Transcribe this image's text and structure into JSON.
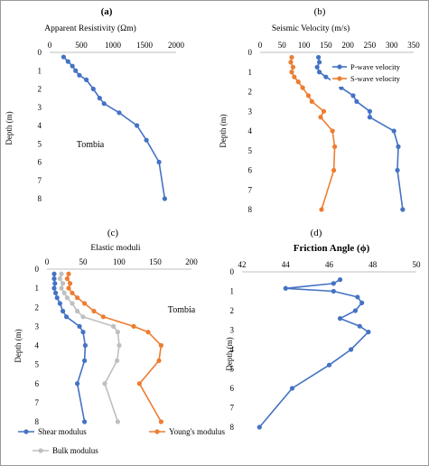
{
  "chart_data": [
    {
      "panel": "(a)",
      "type": "line",
      "title": "Apparent Resistivity (Ωm)",
      "ylabel": "Depth (m)",
      "xlim": [
        0,
        2000
      ],
      "ylim": [
        0,
        8
      ],
      "x_ticks": [
        0,
        500,
        1000,
        1500,
        2000
      ],
      "y_ticks": [
        0,
        1,
        2,
        3,
        4,
        5,
        6,
        7,
        8
      ],
      "annotation": "Tombia",
      "series": [
        {
          "color": "#4472c4",
          "x": [
            220,
            290,
            360,
            410,
            470,
            580,
            690,
            790,
            860,
            1100,
            1380,
            1530,
            1730,
            1820
          ],
          "y": [
            0.25,
            0.5,
            0.75,
            1.0,
            1.25,
            1.5,
            2.0,
            2.5,
            2.8,
            3.3,
            4.0,
            4.8,
            6.0,
            8.0
          ]
        }
      ]
    },
    {
      "panel": "(b)",
      "type": "line",
      "title": "Seismic Velocity (m/s)",
      "ylabel": "Depth (m)",
      "xlim": [
        0,
        350
      ],
      "ylim": [
        0,
        8
      ],
      "x_ticks": [
        0,
        50,
        100,
        150,
        200,
        250,
        300,
        350
      ],
      "y_ticks": [
        0,
        1,
        2,
        3,
        4,
        5,
        6,
        7,
        8
      ],
      "legend_position": "top-right",
      "series": [
        {
          "name": "P-wave velocity",
          "color": "#4472c4",
          "x": [
            133,
            135,
            130,
            135,
            150,
            168,
            185,
            212,
            220,
            250,
            250,
            305,
            315,
            313,
            325
          ],
          "y": [
            0.25,
            0.5,
            0.75,
            1.0,
            1.25,
            1.5,
            1.8,
            2.2,
            2.5,
            3.0,
            3.3,
            4.0,
            4.8,
            6.0,
            8.0
          ]
        },
        {
          "name": "S-wave velocity",
          "color": "#ed7d31",
          "x": [
            72,
            70,
            75,
            72,
            78,
            87,
            97,
            110,
            118,
            145,
            138,
            165,
            170,
            168,
            140
          ],
          "y": [
            0.25,
            0.5,
            0.75,
            1.0,
            1.25,
            1.5,
            1.8,
            2.2,
            2.5,
            3.0,
            3.3,
            4.0,
            4.8,
            6.0,
            8.0
          ]
        }
      ]
    },
    {
      "panel": "(c)",
      "type": "line",
      "title": "Elastic moduli",
      "ylabel": "Depth (m)",
      "xlim": [
        0,
        200
      ],
      "ylim": [
        0,
        8
      ],
      "x_ticks": [
        0,
        50,
        100,
        150,
        200
      ],
      "y_ticks": [
        0,
        1,
        2,
        3,
        4,
        5,
        6,
        7,
        8
      ],
      "annotation": "Tombia",
      "legend_position": "bottom",
      "series": [
        {
          "name": "Shear modulus",
          "color": "#4472c4",
          "x": [
            10,
            10,
            11,
            10,
            12,
            14,
            18,
            22,
            27,
            45,
            50,
            53,
            52,
            42,
            52
          ],
          "y": [
            0.25,
            0.5,
            0.75,
            1.0,
            1.25,
            1.5,
            1.8,
            2.2,
            2.5,
            3.0,
            3.3,
            4.0,
            4.8,
            6.0,
            8.0
          ]
        },
        {
          "name": "Young's modulus",
          "color": "#ed7d31",
          "x": [
            30,
            28,
            32,
            30,
            35,
            42,
            52,
            65,
            78,
            120,
            140,
            158,
            155,
            128,
            158
          ],
          "y": [
            0.25,
            0.5,
            0.75,
            1.0,
            1.25,
            1.5,
            1.8,
            2.2,
            2.5,
            3.0,
            3.3,
            4.0,
            4.8,
            6.0,
            8.0
          ]
        },
        {
          "name": "Bulk modulus",
          "color": "#bfbfbf",
          "x": [
            20,
            18,
            22,
            20,
            24,
            28,
            35,
            42,
            50,
            92,
            98,
            100,
            97,
            80,
            98
          ],
          "y": [
            0.25,
            0.5,
            0.75,
            1.0,
            1.25,
            1.5,
            1.8,
            2.2,
            2.5,
            3.0,
            3.3,
            4.0,
            4.8,
            6.0,
            8.0
          ]
        }
      ]
    },
    {
      "panel": "(d)",
      "type": "line",
      "title": "Friction Angle (ϕ)",
      "ylabel": "Depth (m)",
      "xlim": [
        42,
        50
      ],
      "ylim": [
        0,
        8
      ],
      "x_ticks": [
        42,
        44,
        46,
        48,
        50
      ],
      "y_ticks": [
        0,
        1,
        2,
        3,
        4,
        5,
        6,
        7,
        8
      ],
      "series": [
        {
          "color": "#4472c4",
          "x": [
            46.5,
            46.2,
            44.0,
            46.2,
            47.3,
            47.5,
            47.2,
            46.5,
            47.4,
            47.8,
            47.0,
            46.0,
            44.3,
            42.8
          ],
          "y": [
            0.4,
            0.6,
            0.85,
            1.0,
            1.3,
            1.6,
            2.0,
            2.4,
            2.8,
            3.1,
            4.0,
            4.8,
            6.0,
            8.0
          ]
        }
      ]
    }
  ]
}
